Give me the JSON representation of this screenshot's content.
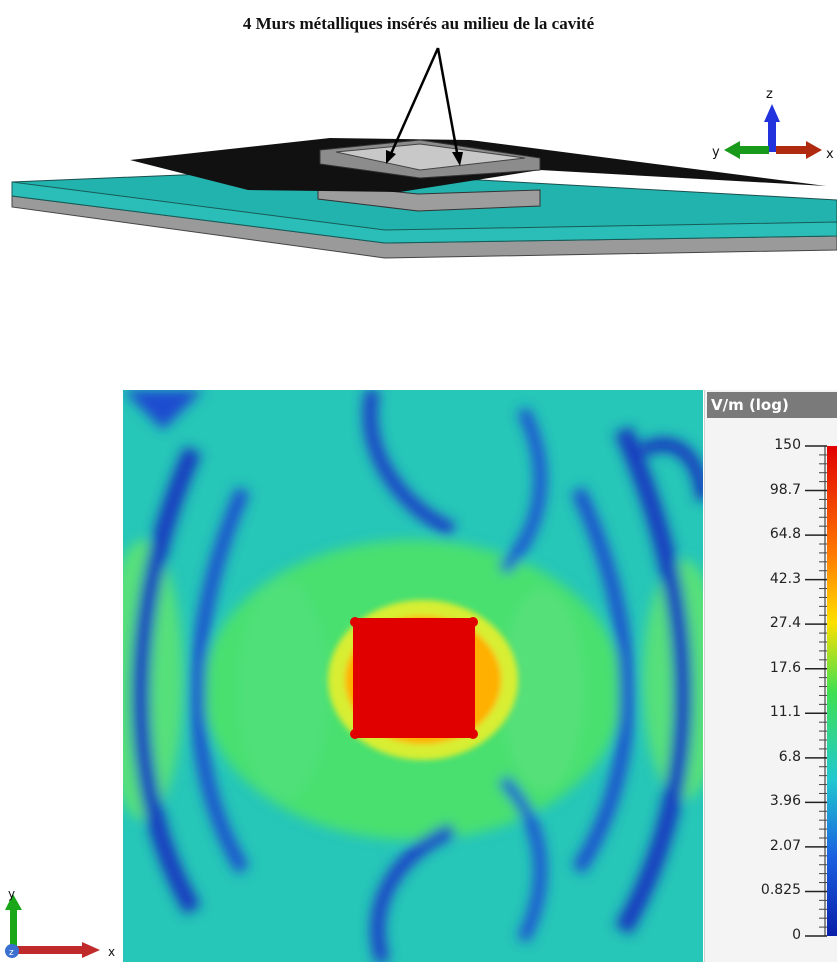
{
  "annotation": {
    "text": "4 Murs métalliques insérés au milieu de la cavité"
  },
  "axes_3d": {
    "z": "z",
    "y": "y",
    "x": "x"
  },
  "axes_2d": {
    "y": "y",
    "x": "x",
    "z": "z"
  },
  "legend": {
    "unit": "V/m (log)",
    "ticks": [
      "150",
      "98.7",
      "64.8",
      "42.3",
      "27.4",
      "17.6",
      "11.1",
      "6.8",
      "3.96",
      "2.07",
      "0.825",
      "0"
    ]
  },
  "colors": {
    "substrate_top": "#1aa6a2",
    "substrate_side": "#8f9a9a",
    "patch": "#111111",
    "cavity": "#8a8a8a",
    "field_max": "#e00000",
    "field_min": "#0a1ea8"
  }
}
